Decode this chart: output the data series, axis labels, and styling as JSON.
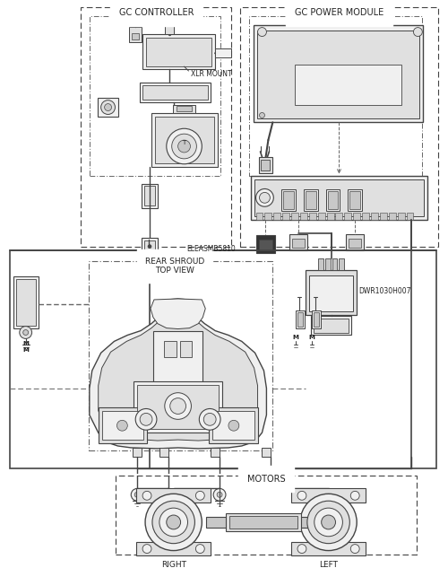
{
  "bg": "#ffffff",
  "lc": "#444444",
  "lc2": "#666666",
  "fc_light": "#f0f0f0",
  "fc_mid": "#e0e0e0",
  "fc_dark": "#c8c8c8",
  "tc": "#222222",
  "gc_controller": "GC CONTROLLER",
  "gc_power": "GC POWER MODULE",
  "rear_shroud": "REAR SHROUD\nTOP VIEW",
  "motors": "MOTORS",
  "right_lbl": "RIGHT",
  "left_lbl": "LEFT",
  "xlr_mount": "XLR MOUNT",
  "eleasmb": "ELEASMB5810",
  "dwr": "DWR1030H007"
}
